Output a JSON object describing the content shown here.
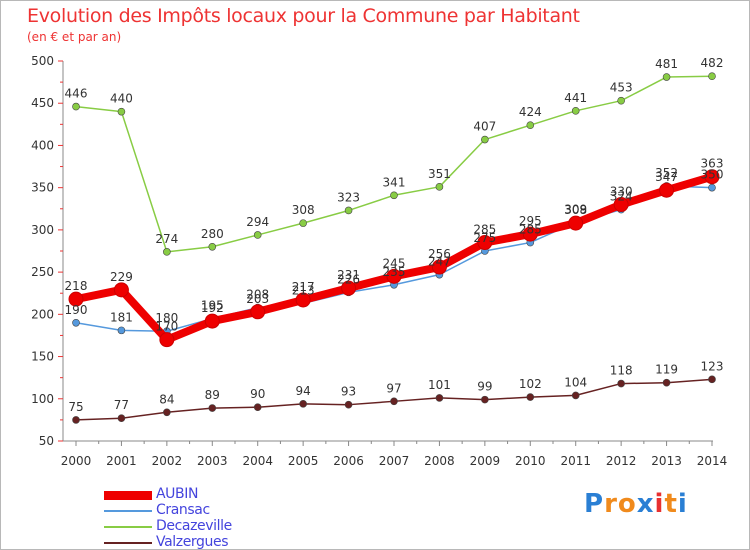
{
  "chart_data": {
    "type": "line",
    "title": "Evolution des Impôts locaux pour la Commune par Habitant",
    "subtitle": "(en € et par an)",
    "x": [
      "2000",
      "2001",
      "2002",
      "2003",
      "2004",
      "2005",
      "2006",
      "2007",
      "2008",
      "2009",
      "2010",
      "2011",
      "2012",
      "2013",
      "2014"
    ],
    "ylim": [
      50,
      500
    ],
    "yticks": [
      50,
      100,
      150,
      200,
      250,
      300,
      350,
      400,
      450,
      500
    ],
    "grid": false,
    "legend_position": "bottom-left",
    "series": [
      {
        "name": "AUBIN",
        "color": "#ee0000",
        "values": [
          218,
          229,
          170,
          192,
          203,
          217,
          231,
          245,
          256,
          285,
          295,
          308,
          330,
          347,
          363
        ],
        "labels": [
          "218",
          "229",
          "170",
          "192",
          "203",
          "217",
          "231",
          "245",
          "256",
          "285",
          "295",
          "308",
          "330",
          "347",
          "363"
        ]
      },
      {
        "name": "Cransac",
        "color": "#5599dd",
        "values": [
          190,
          181,
          180,
          195,
          208,
          213,
          226,
          235,
          247,
          275,
          285,
          309,
          324,
          352,
          350
        ],
        "labels": [
          "190",
          "181",
          "180",
          "195",
          "208",
          "213",
          "226",
          "235",
          "247",
          "275",
          "285",
          "309",
          "324",
          "352",
          "350"
        ]
      },
      {
        "name": "Decazeville",
        "color": "#88cc44",
        "values": [
          446,
          440,
          274,
          280,
          294,
          308,
          323,
          341,
          351,
          407,
          424,
          441,
          453,
          481,
          482
        ],
        "labels": [
          "446",
          "440",
          "274",
          "280",
          "294",
          "308",
          "323",
          "341",
          "351",
          "407",
          "424",
          "441",
          "453",
          "481",
          "482"
        ]
      },
      {
        "name": "Valzergues",
        "color": "#662222",
        "values": [
          75,
          77,
          84,
          89,
          90,
          94,
          93,
          97,
          101,
          99,
          102,
          104,
          118,
          119,
          123
        ],
        "labels": [
          "75",
          "77",
          "84",
          "89",
          "90",
          "94",
          "93",
          "97",
          "101",
          "99",
          "102",
          "104",
          "118",
          "119",
          "123"
        ]
      }
    ]
  },
  "logo": {
    "text": "Proxiti",
    "letters": [
      "P",
      "r",
      "o",
      "x",
      "i",
      "t",
      "i"
    ],
    "colors": [
      "#2a7fd4",
      "#f08a1c",
      "#f08a1c",
      "#2a7fd4",
      "#e83030",
      "#f08a1c",
      "#2a7fd4"
    ]
  }
}
